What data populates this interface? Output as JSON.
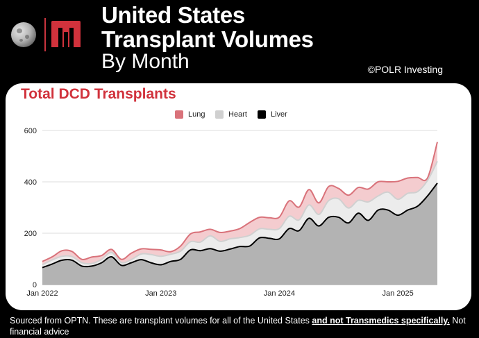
{
  "header": {
    "title_line1": "United States",
    "title_line2": "Transplant Volumes",
    "subtitle": "By Month",
    "credit": "©POLR Investing"
  },
  "logo": {
    "moon_icon": "moon-icon",
    "brand_icon": "transmedics-logo-icon",
    "brand_color": "#d1323c"
  },
  "chart_data": {
    "type": "area",
    "stacked": true,
    "title": "Total DCD Transplants",
    "xlabel": "",
    "ylabel": "",
    "ylim": [
      0,
      600
    ],
    "yticks": [
      0,
      200,
      400,
      600
    ],
    "grid": true,
    "legend_position": "top-center",
    "x_tick_labels": [
      {
        "label": "Jan 2022",
        "index": 0
      },
      {
        "label": "Jan 2023",
        "index": 12
      },
      {
        "label": "Jan 2024",
        "index": 24
      },
      {
        "label": "Jan 2025",
        "index": 36
      }
    ],
    "x": [
      "2022-01",
      "2022-02",
      "2022-03",
      "2022-04",
      "2022-05",
      "2022-06",
      "2022-07",
      "2022-08",
      "2022-09",
      "2022-10",
      "2022-11",
      "2022-12",
      "2023-01",
      "2023-02",
      "2023-03",
      "2023-04",
      "2023-05",
      "2023-06",
      "2023-07",
      "2023-08",
      "2023-09",
      "2023-10",
      "2023-11",
      "2023-12",
      "2024-01",
      "2024-02",
      "2024-03",
      "2024-04",
      "2024-05",
      "2024-06",
      "2024-07",
      "2024-08",
      "2024-09",
      "2024-10",
      "2024-11",
      "2024-12",
      "2025-01",
      "2025-02",
      "2025-03",
      "2025-04",
      "2025-05"
    ],
    "series": [
      {
        "name": "Liver",
        "color": "#000000",
        "values": [
          66,
          80,
          95,
          95,
          72,
          72,
          85,
          108,
          75,
          85,
          97,
          85,
          77,
          90,
          98,
          135,
          132,
          140,
          130,
          138,
          148,
          150,
          182,
          180,
          178,
          218,
          210,
          258,
          228,
          262,
          262,
          240,
          278,
          250,
          290,
          290,
          270,
          290,
          305,
          345,
          395
        ]
      },
      {
        "name": "Heart",
        "color": "#d0d0d0",
        "values": [
          11,
          16,
          15,
          14,
          13,
          10,
          13,
          17,
          11,
          12,
          22,
          32,
          33,
          28,
          32,
          32,
          33,
          50,
          38,
          40,
          35,
          42,
          35,
          35,
          40,
          48,
          42,
          52,
          45,
          65,
          72,
          58,
          50,
          72,
          55,
          70,
          62,
          65,
          57,
          60,
          85
        ]
      },
      {
        "name": "Lung",
        "color": "#d9727a",
        "values": [
          13,
          12,
          22,
          20,
          13,
          25,
          15,
          12,
          12,
          25,
          20,
          20,
          25,
          10,
          20,
          30,
          40,
          25,
          35,
          30,
          35,
          50,
          45,
          45,
          45,
          60,
          50,
          60,
          45,
          55,
          40,
          50,
          50,
          50,
          55,
          40,
          70,
          60,
          55,
          10,
          75
        ]
      }
    ]
  },
  "footer": {
    "text_before": "Sourced from OPTN. These are transplant volumes for all of the United States ",
    "emphasis": "and not Transmedics specifically.",
    "text_after": " Not financial advice"
  }
}
